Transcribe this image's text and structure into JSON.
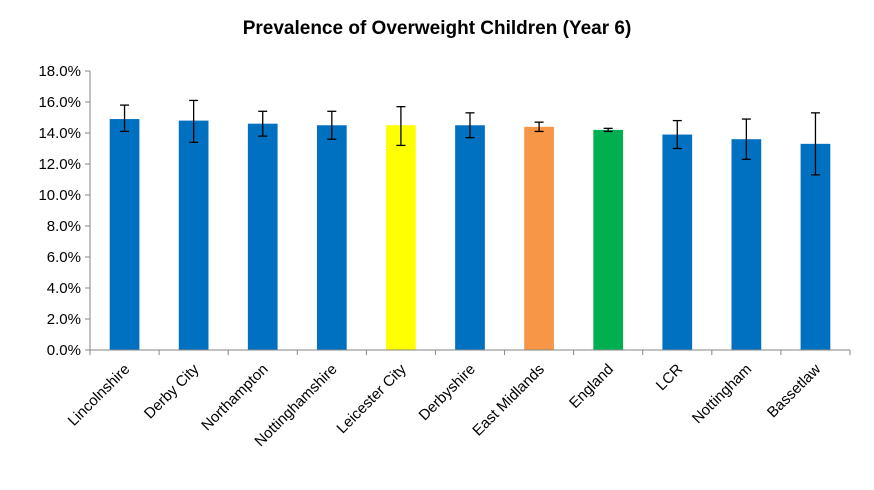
{
  "chart_data": {
    "type": "bar",
    "title": "Prevalence of Overweight Children (Year 6)",
    "xlabel": "",
    "ylabel": "",
    "ylim": [
      0,
      18
    ],
    "ytick_step": 2,
    "y_format": "percent_1dp",
    "grid": false,
    "legend": "none",
    "categories": [
      "Lincolnshire",
      "Derby City",
      "Northampton",
      "Nottinghamshire",
      "Leicester City",
      "Derbyshire",
      "East Midlands",
      "England",
      "LCR",
      "Nottingham",
      "Bassetlaw"
    ],
    "values": [
      14.9,
      14.8,
      14.6,
      14.5,
      14.5,
      14.5,
      14.4,
      14.2,
      13.9,
      13.6,
      13.3
    ],
    "error_low": [
      14.1,
      13.4,
      13.8,
      13.6,
      13.2,
      13.7,
      14.1,
      14.1,
      13.0,
      12.3,
      11.3
    ],
    "error_high": [
      15.8,
      16.1,
      15.4,
      15.4,
      15.7,
      15.3,
      14.7,
      14.3,
      14.8,
      14.9,
      15.3
    ],
    "colors": [
      "#0070C0",
      "#0070C0",
      "#0070C0",
      "#0070C0",
      "#FFFF00",
      "#0070C0",
      "#F79646",
      "#00B050",
      "#0070C0",
      "#0070C0",
      "#0070C0"
    ]
  }
}
